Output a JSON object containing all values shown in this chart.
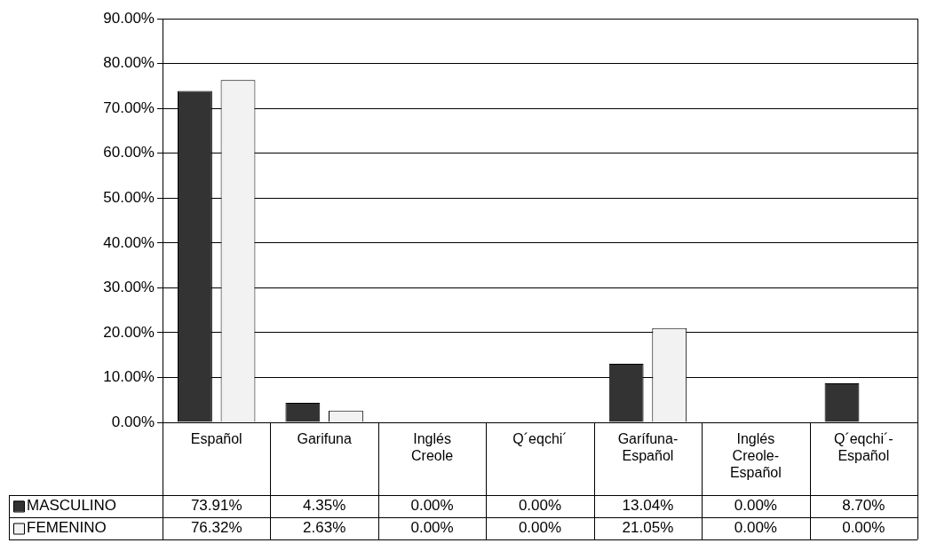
{
  "chart_data": {
    "type": "bar",
    "categories": [
      "Español",
      "Garifuna",
      "Inglés Creole",
      "Q´eqchi´",
      "Garífuna-Español",
      "Inglés Creole-Español",
      "Q´eqchi´-Español"
    ],
    "series": [
      {
        "name": "MASCULINO",
        "color": "#333333",
        "values": [
          73.91,
          4.35,
          0,
          0,
          13.04,
          0,
          8.7
        ],
        "value_labels": [
          "73.91%",
          "4.35%",
          "0.00%",
          "0.00%",
          "13.04%",
          "0.00%",
          "8.70%"
        ]
      },
      {
        "name": "FEMENINO",
        "color": "#f2f2f2",
        "values": [
          76.32,
          2.63,
          0,
          0,
          21.05,
          0,
          0
        ],
        "value_labels": [
          "76.32%",
          "2.63%",
          "0.00%",
          "0.00%",
          "21.05%",
          "0.00%",
          "0.00%"
        ]
      }
    ],
    "ylim": [
      0,
      90
    ],
    "yticks": [
      {
        "value": 0,
        "label": "0.00%"
      },
      {
        "value": 10,
        "label": "10.00%"
      },
      {
        "value": 20,
        "label": "20.00%"
      },
      {
        "value": 30,
        "label": "30.00%"
      },
      {
        "value": 40,
        "label": "40.00%"
      },
      {
        "value": 50,
        "label": "50.00%"
      },
      {
        "value": 60,
        "label": "60.00%"
      },
      {
        "value": 70,
        "label": "70.00%"
      },
      {
        "value": 80,
        "label": "80.00%"
      },
      {
        "value": 90,
        "label": "90.00%"
      }
    ],
    "grid": "y",
    "legend": "bottom"
  }
}
